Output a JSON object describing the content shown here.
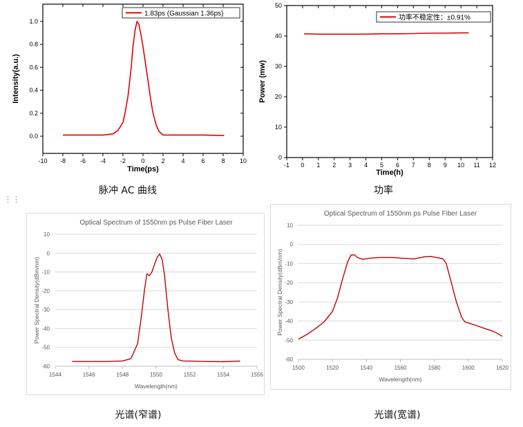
{
  "chart_data": [
    {
      "type": "line",
      "title": "",
      "xlabel": "Time(ps)",
      "ylabel": "Intensity(a.u.)",
      "xlim": [
        -10,
        10
      ],
      "ylim": [
        -0.15,
        1.15
      ],
      "xticks": [
        "-10",
        "-8",
        "-6",
        "-4",
        "-2",
        "0",
        "2",
        "4",
        "6",
        "8",
        "10"
      ],
      "yticks": [
        "0.0",
        "0.2",
        "0.4",
        "0.6",
        "0.8",
        "1.0"
      ],
      "grid": false,
      "legend": "top-right",
      "series": [
        {
          "name": "1.83ps (Gaussian 1.36ps)",
          "color": "#e00000",
          "x": [
            -8.0,
            -6,
            -4,
            -3.0,
            -2.5,
            -2.0,
            -1.8,
            -1.5,
            -1.2,
            -1.0,
            -0.8,
            -0.6,
            -0.4,
            -0.2,
            0,
            0.2,
            0.5,
            0.8,
            1.0,
            1.3,
            1.6,
            2.0,
            2.5,
            3,
            4,
            6,
            8.1
          ],
          "y": [
            0.01,
            0.01,
            0.01,
            0.02,
            0.05,
            0.12,
            0.2,
            0.35,
            0.58,
            0.78,
            0.92,
            1.0,
            0.97,
            0.88,
            0.78,
            0.66,
            0.48,
            0.3,
            0.2,
            0.1,
            0.04,
            0.01,
            0.01,
            0.01,
            0.01,
            0.01,
            0.005
          ]
        }
      ]
    },
    {
      "type": "line",
      "title": "",
      "xlabel": "Time(h)",
      "ylabel": "Power (mw)",
      "xlim": [
        -1,
        12
      ],
      "ylim": [
        0,
        50
      ],
      "xticks": [
        "-1",
        "0",
        "1",
        "2",
        "3",
        "4",
        "5",
        "6",
        "7",
        "8",
        "9",
        "10",
        "11",
        "12"
      ],
      "yticks": [
        "0",
        "10",
        "20",
        "30",
        "40",
        "50"
      ],
      "grid": false,
      "legend": "top-right",
      "series": [
        {
          "name": "功率不稳定性：±0.91%",
          "color": "#e00000",
          "x": [
            0.1,
            1,
            2,
            3,
            4,
            5,
            6,
            7,
            8,
            9,
            10,
            10.5
          ],
          "y": [
            40.7,
            40.6,
            40.6,
            40.6,
            40.6,
            40.7,
            40.7,
            40.8,
            40.9,
            40.9,
            41.0,
            41.0
          ]
        }
      ]
    },
    {
      "type": "line",
      "title": "Optical Spectrum of 1550nm ps Pulse Fiber Laser",
      "xlabel": "Wavelength(nm)",
      "ylabel": "Power Spectral Density(dBm/nm)",
      "xlim": [
        1544,
        1556
      ],
      "ylim": [
        -60,
        10
      ],
      "xticks": [
        "1544",
        "1546",
        "1548",
        "1550",
        "1552",
        "1554",
        "1556"
      ],
      "yticks": [
        "10",
        "0",
        "-10",
        "-20",
        "-30",
        "-40",
        "-50",
        "-60"
      ],
      "grid": "horizontal",
      "series": [
        {
          "name": "",
          "color": "#c00000",
          "x": [
            1545,
            1546,
            1547,
            1548,
            1548.5,
            1548.9,
            1549.1,
            1549.3,
            1549.45,
            1549.6,
            1549.75,
            1549.9,
            1550.05,
            1550.2,
            1550.35,
            1550.5,
            1550.7,
            1550.9,
            1551.1,
            1551.3,
            1551.6,
            1552,
            1553,
            1554,
            1555
          ],
          "y": [
            -57.5,
            -57.5,
            -57.5,
            -57.2,
            -56,
            -48,
            -35,
            -20,
            -11,
            -12,
            -10,
            -6,
            -2.5,
            -0.5,
            -3,
            -12,
            -30,
            -45,
            -53,
            -56.5,
            -57.2,
            -57.3,
            -57.5,
            -57.6,
            -57.3
          ]
        }
      ]
    },
    {
      "type": "line",
      "title": "Optical Spectrum of 1550nm ps Pulse Fiber Laser",
      "xlabel": "Wavelength(nm)",
      "ylabel": "Power Spectral Density(dBm/nm)",
      "xlim": [
        1500,
        1620
      ],
      "ylim": [
        -60,
        10
      ],
      "xticks": [
        "1500",
        "1520",
        "1540",
        "1560",
        "1580",
        "1600",
        "1620"
      ],
      "yticks": [
        "10",
        "0",
        "-10",
        "-20",
        "-30",
        "-40",
        "-50",
        "-60"
      ],
      "grid": "horizontal",
      "series": [
        {
          "name": "",
          "color": "#c00000",
          "x": [
            1500,
            1505,
            1510,
            1515,
            1520,
            1523,
            1526,
            1529,
            1531,
            1533,
            1535,
            1538,
            1542,
            1548,
            1555,
            1562,
            1568,
            1574,
            1578,
            1582,
            1585,
            1587,
            1590,
            1593,
            1596,
            1598,
            1600,
            1605,
            1610,
            1615,
            1620
          ],
          "y": [
            -49.5,
            -47,
            -44,
            -40.5,
            -35,
            -28,
            -18,
            -9,
            -5.5,
            -5.5,
            -7,
            -7.8,
            -7.2,
            -6.8,
            -6.8,
            -7.3,
            -7.6,
            -6.5,
            -6.3,
            -7,
            -7.5,
            -10,
            -20,
            -30,
            -38,
            -40.5,
            -41,
            -42.5,
            -44,
            -45.5,
            -48
          ]
        }
      ]
    }
  ],
  "captions": {
    "ac_curve": "脉冲 AC 曲线",
    "power": "功率",
    "narrow_spectrum": "光谱(窄谱)",
    "wide_spectrum": "光谱(宽谱)"
  },
  "drag_handle_icon": "drag-handle-icon"
}
